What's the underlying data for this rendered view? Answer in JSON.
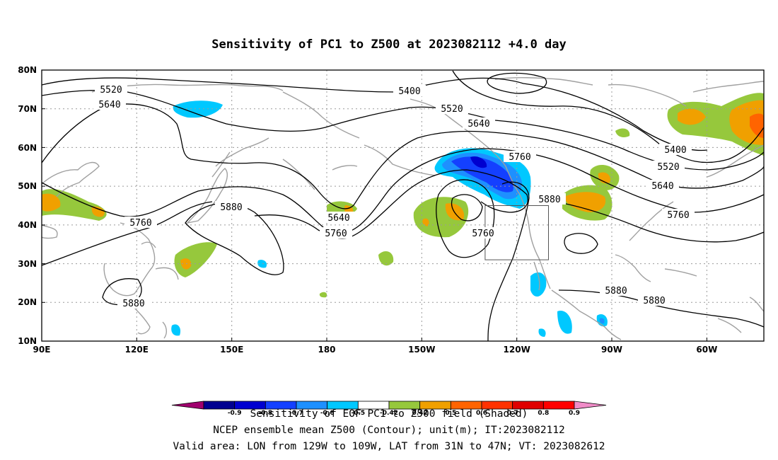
{
  "title": "Sensitivity of PC1 to Z500 at 2023082112 +4.0 day",
  "lat_labels": [
    "80N",
    "70N",
    "60N",
    "50N",
    "40N",
    "30N",
    "20N",
    "10N"
  ],
  "lon_labels": [
    "90E",
    "120E",
    "150E",
    "180",
    "150W",
    "120W",
    "90W",
    "60W"
  ],
  "contour_labels": [
    "5400",
    "5520",
    "5640",
    "5760",
    "5880"
  ],
  "colorbar": {
    "ticks": [
      "-0.9",
      "-0.8",
      "-0.7",
      "-0.6",
      "-0.5",
      "-0.42",
      "0.42",
      "0.5",
      "0.6",
      "0.7",
      "0.8",
      "0.9"
    ],
    "colors": [
      "#a0006e",
      "#000090",
      "#0000d0",
      "#1440ff",
      "#1e90ff",
      "#00c8ff",
      "#ffffff",
      "#96c83c",
      "#f0a000",
      "#ff6400",
      "#ff3200",
      "#e00000",
      "#ff0000",
      "#f08cc8"
    ]
  },
  "captions": {
    "line1": "Sensitivity of EOF PC1 to Z500 field (Shaded)",
    "line2": "NCEP ensemble mean Z500 (Contour); unit(m); IT:2023082112",
    "line3": "Valid area: LON from 129W to 109W, LAT from 31N to 47N; VT: 2023082612"
  },
  "valid_area": {
    "lon_from": "129W",
    "lon_to": "109W",
    "lat_from": "31N",
    "lat_to": "47N"
  },
  "colors": {
    "coastline": "#a0a0a0",
    "contour": "#000000",
    "grid": "#9a9a9a"
  }
}
